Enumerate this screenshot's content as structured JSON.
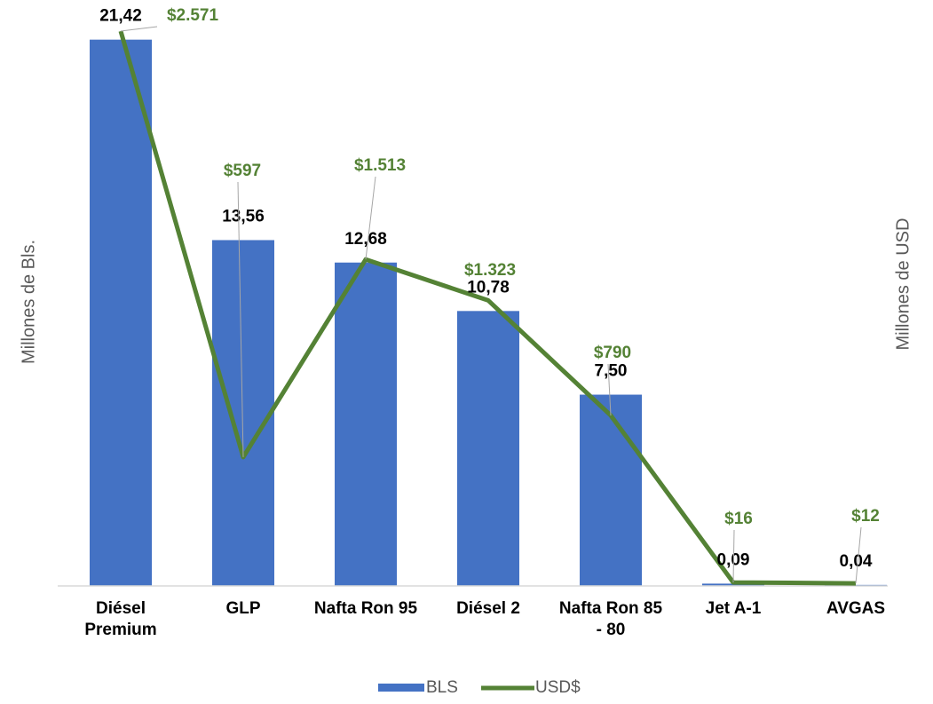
{
  "chart_data": {
    "type": "bar",
    "categories": [
      "Diésel Premium",
      "GLP",
      "Nafta Ron 95",
      "Diésel 2",
      "Nafta Ron 85 - 80",
      "Jet A-1",
      "AVGAS"
    ],
    "series": [
      {
        "name": "BLS",
        "type": "bar",
        "color": "#4472c4",
        "values": [
          21.42,
          13.56,
          12.68,
          10.78,
          7.5,
          0.09,
          0.04
        ],
        "value_labels": [
          "21,42",
          "13,56",
          "12,68",
          "10,78",
          "7,50",
          "0,09",
          "0,04"
        ]
      },
      {
        "name": "USD$",
        "type": "line",
        "axis": "y2",
        "color": "#548235",
        "values": [
          2571,
          597,
          1513,
          1323,
          790,
          16,
          12
        ],
        "value_labels": [
          "$2.571",
          "$597",
          "$1.513",
          "$1.323",
          "$790",
          "$16",
          "$12"
        ]
      }
    ],
    "y_label": "Millones de Bls.",
    "y2_label": "Millones de USD",
    "ylim": [
      0,
      22
    ],
    "y2lim": [
      0,
      2600
    ],
    "grid": false,
    "legend": "bottom"
  }
}
